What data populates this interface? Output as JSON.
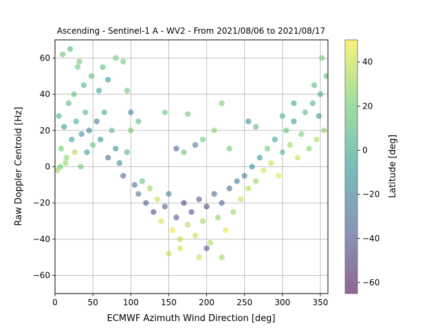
{
  "chart_data": {
    "type": "scatter",
    "title": "Ascending - Sentinel-1 A - WV2 - From 2021/08/06 to 2021/08/17",
    "xlabel": "ECMWF Azimuth Wind Direction [deg]",
    "ylabel": "Raw Doppler Centroid [Hz]",
    "xlim": [
      0,
      360
    ],
    "ylim": [
      -70,
      70
    ],
    "xticks": [
      "0",
      "50",
      "100",
      "150",
      "200",
      "250",
      "300",
      "350"
    ],
    "yticks": [
      "-60",
      "-40",
      "-20",
      "0",
      "20",
      "40",
      "60"
    ],
    "grid": true,
    "marker_alpha": 0.55,
    "colorbar": {
      "label": "Latitude [deg]",
      "range": [
        -65,
        50
      ],
      "ticks": [
        "-60",
        "-40",
        "-20",
        "0",
        "20",
        "40"
      ],
      "colormap": "viridis"
    },
    "series": [
      {
        "values": [
          [
            5,
            28,
            5
          ],
          [
            12,
            22,
            -10
          ],
          [
            18,
            35,
            10
          ],
          [
            22,
            15,
            -5
          ],
          [
            28,
            25,
            0
          ],
          [
            35,
            18,
            -15
          ],
          [
            40,
            30,
            8
          ],
          [
            45,
            20,
            -20
          ],
          [
            50,
            12,
            15
          ],
          [
            8,
            10,
            20
          ],
          [
            15,
            5,
            25
          ],
          [
            25,
            40,
            12
          ],
          [
            30,
            55,
            18
          ],
          [
            38,
            45,
            5
          ],
          [
            42,
            8,
            -8
          ],
          [
            55,
            25,
            -25
          ],
          [
            60,
            15,
            -12
          ],
          [
            65,
            30,
            2
          ],
          [
            70,
            5,
            -30
          ],
          [
            75,
            20,
            10
          ],
          [
            10,
            62,
            15
          ],
          [
            20,
            65,
            8
          ],
          [
            32,
            58,
            20
          ],
          [
            48,
            50,
            12
          ],
          [
            58,
            42,
            -5
          ],
          [
            3,
            -2,
            30
          ],
          [
            7,
            0,
            22
          ],
          [
            14,
            2,
            28
          ],
          [
            26,
            8,
            35
          ],
          [
            34,
            0,
            18
          ],
          [
            80,
            10,
            -15
          ],
          [
            85,
            2,
            -20
          ],
          [
            90,
            -5,
            -35
          ],
          [
            95,
            8,
            5
          ],
          [
            100,
            20,
            20
          ],
          [
            105,
            -10,
            -30
          ],
          [
            110,
            -15,
            -25
          ],
          [
            115,
            -8,
            15
          ],
          [
            120,
            -20,
            -40
          ],
          [
            125,
            -12,
            30
          ],
          [
            130,
            -25,
            -45
          ],
          [
            135,
            -18,
            40
          ],
          [
            140,
            -30,
            42
          ],
          [
            145,
            -22,
            -38
          ],
          [
            150,
            -15,
            -20
          ],
          [
            155,
            -35,
            45
          ],
          [
            160,
            -28,
            -42
          ],
          [
            165,
            -40,
            38
          ],
          [
            170,
            -20,
            -50
          ],
          [
            175,
            -32,
            35
          ],
          [
            180,
            -25,
            -45
          ],
          [
            185,
            -38,
            40
          ],
          [
            190,
            -18,
            -40
          ],
          [
            195,
            -30,
            30
          ],
          [
            200,
            -22,
            -48
          ],
          [
            205,
            -42,
            35
          ],
          [
            210,
            -15,
            -35
          ],
          [
            215,
            -28,
            25
          ],
          [
            220,
            -20,
            -38
          ],
          [
            225,
            -35,
            45
          ],
          [
            230,
            -12,
            -30
          ],
          [
            235,
            -25,
            28
          ],
          [
            240,
            -8,
            -25
          ],
          [
            245,
            -18,
            40
          ],
          [
            250,
            -5,
            -20
          ],
          [
            255,
            -12,
            35
          ],
          [
            260,
            0,
            -15
          ],
          [
            265,
            -8,
            30
          ],
          [
            270,
            5,
            -10
          ],
          [
            275,
            -2,
            42
          ],
          [
            280,
            10,
            20
          ],
          [
            285,
            2,
            38
          ],
          [
            290,
            15,
            -5
          ],
          [
            295,
            -5,
            45
          ],
          [
            300,
            8,
            10
          ],
          [
            305,
            20,
            15
          ],
          [
            310,
            12,
            30
          ],
          [
            315,
            25,
            -8
          ],
          [
            320,
            5,
            40
          ],
          [
            325,
            18,
            22
          ],
          [
            330,
            30,
            10
          ],
          [
            335,
            10,
            25
          ],
          [
            340,
            35,
            5
          ],
          [
            345,
            15,
            35
          ],
          [
            350,
            40,
            0
          ],
          [
            355,
            20,
            28
          ],
          [
            358,
            50,
            12
          ],
          [
            352,
            60,
            20
          ],
          [
            348,
            28,
            -10
          ],
          [
            342,
            45,
            8
          ],
          [
            100,
            30,
            -20
          ],
          [
            110,
            25,
            10
          ],
          [
            145,
            30,
            15
          ],
          [
            175,
            29,
            20
          ],
          [
            210,
            20,
            25
          ],
          [
            220,
            35,
            22
          ],
          [
            255,
            25,
            -15
          ],
          [
            265,
            22,
            12
          ],
          [
            300,
            28,
            5
          ],
          [
            315,
            35,
            -2
          ],
          [
            160,
            10,
            -35
          ],
          [
            170,
            8,
            15
          ],
          [
            185,
            12,
            -25
          ],
          [
            195,
            15,
            18
          ],
          [
            230,
            10,
            20
          ],
          [
            95,
            42,
            15
          ],
          [
            90,
            58,
            18
          ],
          [
            80,
            60,
            20
          ],
          [
            70,
            48,
            -10
          ],
          [
            63,
            55,
            12
          ],
          [
            150,
            -48,
            38
          ],
          [
            165,
            -45,
            42
          ],
          [
            190,
            -50,
            40
          ],
          [
            200,
            -45,
            -40
          ],
          [
            220,
            -50,
            30
          ]
        ]
      }
    ]
  }
}
